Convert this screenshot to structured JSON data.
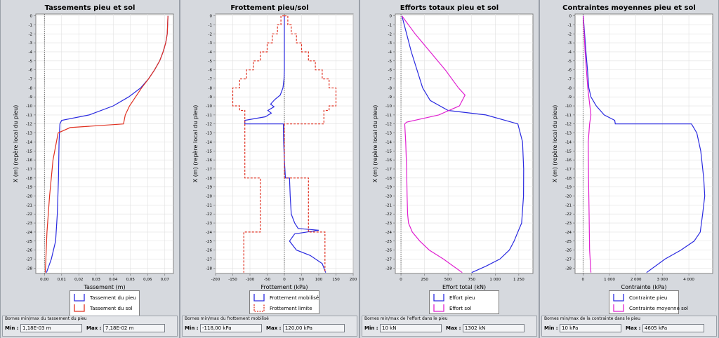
{
  "charts": [
    {
      "title": "Tassements pieu et sol",
      "xlabel": "Tassement (m)",
      "ylabel": "X (m) (repère local du pieu)",
      "xlim": [
        -0.005,
        0.075
      ],
      "xticks": [
        0.0,
        0.01,
        0.02,
        0.03,
        0.04,
        0.05,
        0.06,
        0.07
      ],
      "xtick_labels": [
        "0,00",
        "0,01",
        "0,02",
        "0,03",
        "0,04",
        "0,05",
        "0,06",
        "0,07"
      ],
      "series": [
        {
          "name": "Tassement du pieu",
          "color": "#2a2ae0",
          "dash": false,
          "points": [
            [
              0.0718,
              0
            ],
            [
              0.0714,
              -2
            ],
            [
              0.0705,
              -3
            ],
            [
              0.069,
              -4
            ],
            [
              0.067,
              -5
            ],
            [
              0.064,
              -6
            ],
            [
              0.0605,
              -7
            ],
            [
              0.056,
              -8
            ],
            [
              0.049,
              -9
            ],
            [
              0.04,
              -10
            ],
            [
              0.026,
              -11
            ],
            [
              0.01,
              -11.6
            ],
            [
              0.009,
              -12
            ],
            [
              0.0085,
              -14
            ],
            [
              0.0082,
              -18
            ],
            [
              0.0075,
              -22
            ],
            [
              0.0065,
              -25
            ],
            [
              0.004,
              -27
            ],
            [
              0.0012,
              -28.5
            ]
          ]
        },
        {
          "name": "Tassement du sol",
          "color": "#e03020",
          "dash": false,
          "points": [
            [
              0.0718,
              0
            ],
            [
              0.0714,
              -2
            ],
            [
              0.0705,
              -3
            ],
            [
              0.069,
              -4
            ],
            [
              0.067,
              -5
            ],
            [
              0.064,
              -6
            ],
            [
              0.0605,
              -7
            ],
            [
              0.0565,
              -8
            ],
            [
              0.053,
              -9
            ],
            [
              0.0495,
              -10
            ],
            [
              0.047,
              -11
            ],
            [
              0.046,
              -12
            ],
            [
              0.015,
              -12.4
            ],
            [
              0.008,
              -13
            ],
            [
              0.005,
              -16
            ],
            [
              0.003,
              -20
            ],
            [
              0.0015,
              -24
            ],
            [
              0.0005,
              -28.5
            ]
          ]
        }
      ],
      "legend_height": 48,
      "bounds": {
        "title": "Bornes min/max du tassement du pieu",
        "min_label": "Min :",
        "min_value": "1,18E-03 m",
        "max_label": "Max :",
        "max_value": "7,18E-02 m"
      }
    },
    {
      "title": "Frottement pieu/sol",
      "xlabel": "Frottement (kPa)",
      "ylabel": "X (m) (repère local du pieu)",
      "xlim": [
        -200,
        200
      ],
      "xticks": [
        -200,
        -150,
        -100,
        -50,
        0,
        50,
        100,
        150,
        200
      ],
      "xtick_labels": [
        "-200",
        "-150",
        "-100",
        "-50",
        "0",
        "50",
        "100",
        "150",
        "200"
      ],
      "series": [
        {
          "name": "Frottement mobilisé",
          "color": "#2a2ae0",
          "dash": false,
          "points": [
            [
              0,
              0
            ],
            [
              0,
              -6
            ],
            [
              -1,
              -7
            ],
            [
              -4,
              -8
            ],
            [
              -12,
              -8.8
            ],
            [
              -28,
              -9.3
            ],
            [
              -40,
              -9.8
            ],
            [
              -30,
              -10.1
            ],
            [
              -48,
              -10.5
            ],
            [
              -38,
              -10.8
            ],
            [
              -55,
              -11.2
            ],
            [
              -115,
              -11.6
            ],
            [
              -115,
              -12
            ],
            [
              -3,
              -12
            ],
            [
              -2,
              -14
            ],
            [
              0,
              -16
            ],
            [
              3,
              -18
            ],
            [
              15,
              -18
            ],
            [
              17,
              -20
            ],
            [
              20,
              -22
            ],
            [
              30,
              -23
            ],
            [
              40,
              -23.6
            ],
            [
              100,
              -23.8
            ],
            [
              30,
              -24.2
            ],
            [
              15,
              -25
            ],
            [
              35,
              -26
            ],
            [
              75,
              -26.6
            ],
            [
              110,
              -27.5
            ],
            [
              120,
              -28.5
            ]
          ]
        },
        {
          "name": "Frottement limite",
          "color": "#e03020",
          "dash": true,
          "points": [
            [
              0,
              0
            ],
            [
              -10,
              0
            ],
            [
              -10,
              -1
            ],
            [
              -20,
              -1
            ],
            [
              -20,
              -2
            ],
            [
              -35,
              -2
            ],
            [
              -35,
              -3
            ],
            [
              -50,
              -3
            ],
            [
              -50,
              -4
            ],
            [
              -70,
              -4
            ],
            [
              -70,
              -5
            ],
            [
              -90,
              -5
            ],
            [
              -90,
              -6
            ],
            [
              -110,
              -6
            ],
            [
              -110,
              -7
            ],
            [
              -130,
              -7
            ],
            [
              -130,
              -8
            ],
            [
              -150,
              -8
            ],
            [
              -150,
              -9
            ],
            [
              -150,
              -10
            ],
            [
              -130,
              -10
            ],
            [
              -130,
              -10.5
            ],
            [
              -115,
              -10.5
            ],
            [
              -115,
              -12
            ],
            [
              -115,
              -18
            ],
            [
              -70,
              -18
            ],
            [
              -70,
              -24
            ],
            [
              -118,
              -24
            ],
            [
              -118,
              -28.5
            ]
          ]
        },
        {
          "name": "",
          "color": "#e03020",
          "dash": true,
          "points": [
            [
              0,
              0
            ],
            [
              10,
              0
            ],
            [
              10,
              -1
            ],
            [
              20,
              -1
            ],
            [
              20,
              -2
            ],
            [
              35,
              -2
            ],
            [
              35,
              -3
            ],
            [
              50,
              -3
            ],
            [
              50,
              -4
            ],
            [
              70,
              -4
            ],
            [
              70,
              -5
            ],
            [
              90,
              -5
            ],
            [
              90,
              -6
            ],
            [
              110,
              -6
            ],
            [
              110,
              -7
            ],
            [
              130,
              -7
            ],
            [
              130,
              -8
            ],
            [
              150,
              -8
            ],
            [
              150,
              -9
            ],
            [
              150,
              -10
            ],
            [
              130,
              -10
            ],
            [
              130,
              -10.5
            ],
            [
              115,
              -10.5
            ],
            [
              115,
              -12
            ],
            [
              0,
              -12
            ]
          ]
        },
        {
          "name": "",
          "color": "#e03020",
          "dash": true,
          "points": [
            [
              0,
              -12
            ],
            [
              0,
              -18
            ],
            [
              70,
              -18
            ],
            [
              70,
              -24
            ],
            [
              118,
              -24
            ],
            [
              118,
              -28.5
            ]
          ]
        }
      ],
      "legend_height": 34,
      "bounds": {
        "title": "Bornes min/max du frottement mobilisé",
        "min_label": "Min :",
        "min_value": "-118,00 kPa",
        "max_label": "Max :",
        "max_value": "120,00 kPa"
      }
    },
    {
      "title": "Efforts totaux pieu et sol",
      "xlabel": "Effort total (kN)",
      "ylabel": "X (m) (repère local du pieu)",
      "xlim": [
        -60,
        1400
      ],
      "xticks": [
        0,
        250,
        500,
        750,
        1000,
        1250
      ],
      "xtick_labels": [
        "0",
        "250",
        "500",
        "750",
        "1 000",
        "1 250"
      ],
      "series": [
        {
          "name": "Effort pieu",
          "color": "#2a2ae0",
          "dash": false,
          "points": [
            [
              10,
              0
            ],
            [
              60,
              -2
            ],
            [
              110,
              -4
            ],
            [
              170,
              -6
            ],
            [
              230,
              -8
            ],
            [
              310,
              -9.4
            ],
            [
              500,
              -10.5
            ],
            [
              900,
              -11
            ],
            [
              1240,
              -12
            ],
            [
              1290,
              -14
            ],
            [
              1302,
              -17
            ],
            [
              1300,
              -20
            ],
            [
              1280,
              -23
            ],
            [
              1240,
              -24
            ],
            [
              1200,
              -25
            ],
            [
              1150,
              -26
            ],
            [
              1050,
              -27
            ],
            [
              900,
              -27.8
            ],
            [
              750,
              -28.5
            ]
          ]
        },
        {
          "name": "Effort sol",
          "color": "#e020d0",
          "dash": false,
          "points": [
            [
              10,
              0
            ],
            [
              150,
              -2
            ],
            [
              310,
              -4
            ],
            [
              470,
              -6
            ],
            [
              610,
              -8
            ],
            [
              680,
              -8.8
            ],
            [
              620,
              -10
            ],
            [
              400,
              -11
            ],
            [
              60,
              -11.8
            ],
            [
              40,
              -12
            ],
            [
              50,
              -14
            ],
            [
              60,
              -17
            ],
            [
              65,
              -20
            ],
            [
              70,
              -22
            ],
            [
              80,
              -23
            ],
            [
              120,
              -24
            ],
            [
              200,
              -25
            ],
            [
              300,
              -26
            ],
            [
              450,
              -27
            ],
            [
              650,
              -28.5
            ]
          ]
        }
      ],
      "legend_height": 34,
      "bounds": {
        "title": "Bornes min/max de l'effort dans le pieu",
        "min_label": "Min :",
        "min_value": "10 kN",
        "max_label": "Max :",
        "max_value": "1302 kN"
      }
    },
    {
      "title": "Contraintes moyennes pieu et sol",
      "xlabel": "Contrainte (kPa)",
      "ylabel": "X (m) (repère local du pieu)",
      "xlim": [
        -300,
        4900
      ],
      "xticks": [
        0,
        1000,
        2000,
        3000,
        4000
      ],
      "xtick_labels": [
        "0",
        "1 000",
        "2 000",
        "3 000",
        "4 000"
      ],
      "series": [
        {
          "name": "Contrainte pieu",
          "color": "#2a2ae0",
          "dash": false,
          "points": [
            [
              10,
              0
            ],
            [
              60,
              -2
            ],
            [
              110,
              -4
            ],
            [
              170,
              -6
            ],
            [
              220,
              -8
            ],
            [
              300,
              -9
            ],
            [
              500,
              -10
            ],
            [
              800,
              -11
            ],
            [
              1200,
              -11.6
            ],
            [
              1220,
              -12
            ],
            [
              4100,
              -12
            ],
            [
              4300,
              -13
            ],
            [
              4450,
              -15
            ],
            [
              4560,
              -18
            ],
            [
              4600,
              -20
            ],
            [
              4520,
              -22
            ],
            [
              4430,
              -24
            ],
            [
              4200,
              -25
            ],
            [
              3700,
              -26
            ],
            [
              3100,
              -27
            ],
            [
              2400,
              -28.5
            ]
          ]
        },
        {
          "name": "Contrainte moyenne sol",
          "color": "#e020d0",
          "dash": false,
          "points": [
            [
              10,
              0
            ],
            [
              80,
              -4
            ],
            [
              180,
              -8
            ],
            [
              260,
              -10
            ],
            [
              300,
              -11
            ],
            [
              250,
              -12
            ],
            [
              200,
              -14
            ],
            [
              210,
              -18
            ],
            [
              230,
              -22
            ],
            [
              250,
              -26
            ],
            [
              300,
              -28.5
            ]
          ]
        }
      ],
      "legend_height": 34,
      "bounds": {
        "title": "Bornes min/max de la contrainte dans le pieu",
        "min_label": "Min :",
        "min_value": "10 kPa",
        "max_label": "Max :",
        "max_value": "4605 kPa"
      }
    }
  ],
  "yticks": [
    0,
    -1,
    -2,
    -3,
    -4,
    -5,
    -6,
    -7,
    -8,
    -9,
    -10,
    -11,
    -12,
    -13,
    -14,
    -15,
    -16,
    -17,
    -18,
    -19,
    -20,
    -21,
    -22,
    -23,
    -24,
    -25,
    -26,
    -27,
    -28
  ],
  "ylim": [
    -28.6,
    0.2
  ],
  "chart_data": [
    {
      "type": "line",
      "title": "Tassements pieu et sol",
      "xlabel": "Tassement (m)",
      "ylabel": "X (m) (repère local du pieu)",
      "xlim": [
        -0.005,
        0.075
      ],
      "ylim": [
        -28.6,
        0.2
      ],
      "series": [
        "Tassement du pieu",
        "Tassement du sol"
      ]
    },
    {
      "type": "line",
      "title": "Frottement pieu/sol",
      "xlabel": "Frottement (kPa)",
      "ylabel": "X (m) (repère local du pieu)",
      "xlim": [
        -200,
        200
      ],
      "ylim": [
        -28.6,
        0.2
      ],
      "series": [
        "Frottement mobilisé",
        "Frottement limite"
      ]
    },
    {
      "type": "line",
      "title": "Efforts totaux pieu et sol",
      "xlabel": "Effort total (kN)",
      "ylabel": "X (m) (repère local du pieu)",
      "xlim": [
        -60,
        1400
      ],
      "ylim": [
        -28.6,
        0.2
      ],
      "series": [
        "Effort pieu",
        "Effort sol"
      ]
    },
    {
      "type": "line",
      "title": "Contraintes moyennes pieu et sol",
      "xlabel": "Contrainte (kPa)",
      "ylabel": "X (m) (repère local du pieu)",
      "xlim": [
        -300,
        4900
      ],
      "ylim": [
        -28.6,
        0.2
      ],
      "series": [
        "Contrainte pieu",
        "Contrainte moyenne sol"
      ]
    }
  ]
}
